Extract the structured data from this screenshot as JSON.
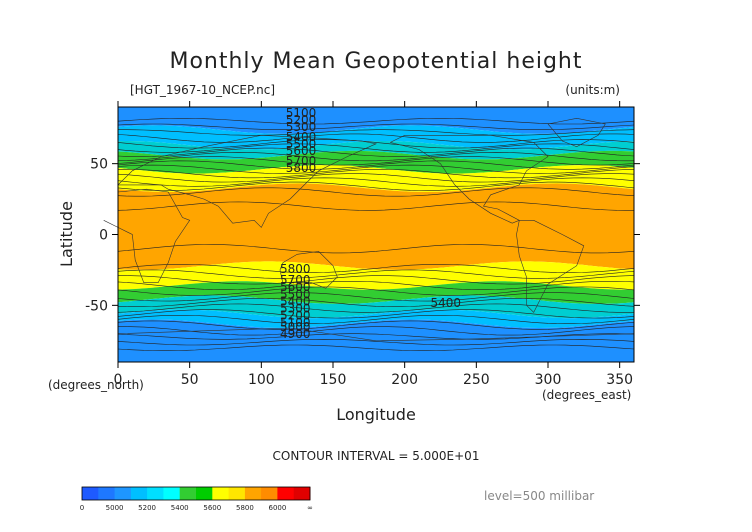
{
  "chart_data": {
    "type": "heatmap",
    "title": "Monthly Mean Geopotential height",
    "file_label": "[HGT_1967-10_NCEP.nc]",
    "units_label": "(units:m)",
    "xlabel": "Longitude",
    "ylabel": "Latitude",
    "x_units": "(degrees_east)",
    "y_units": "(degrees_north)",
    "xlim": [
      0,
      360
    ],
    "ylim": [
      -90,
      90
    ],
    "x_ticks": [
      "0",
      "50",
      "100",
      "150",
      "200",
      "250",
      "300",
      "350"
    ],
    "y_ticks": [
      "50",
      "0",
      "-50"
    ],
    "contour_interval": "CONTOUR INTERVAL = 5.000E+01",
    "level": "level=500 millibar",
    "contour_labels_north": [
      "5100",
      "5200",
      "5300",
      "5400",
      "5500",
      "5600",
      "5700",
      "5800"
    ],
    "contour_labels_south": [
      "5800",
      "5700",
      "5600",
      "5500",
      "5400",
      "5300",
      "5200",
      "5100",
      "5000",
      "4900"
    ],
    "contour_label_mid": "5400",
    "colorbar_ticks": [
      "0",
      "5000",
      "5200",
      "5400",
      "5600",
      "5800",
      "6000",
      "∞"
    ],
    "bands": [
      {
        "from": 90,
        "to": 74,
        "color": "#1e90ff"
      },
      {
        "from": 74,
        "to": 63,
        "color": "#00bfff"
      },
      {
        "from": 63,
        "to": 56,
        "color": "#00ced1"
      },
      {
        "from": 56,
        "to": 46,
        "color": "#32cd32"
      },
      {
        "from": 46,
        "to": 33,
        "color": "#ffff00"
      },
      {
        "from": 33,
        "to": -22,
        "color": "#ffa500"
      },
      {
        "from": -22,
        "to": -36,
        "color": "#ffff00"
      },
      {
        "from": -36,
        "to": -46,
        "color": "#32cd32"
      },
      {
        "from": -46,
        "to": -56,
        "color": "#00ced1"
      },
      {
        "from": -56,
        "to": -63,
        "color": "#00bfff"
      },
      {
        "from": -63,
        "to": -90,
        "color": "#1e90ff"
      }
    ],
    "colorbar_colors": [
      "#1e5aff",
      "#1e78ff",
      "#1e96ff",
      "#00bfff",
      "#00dfff",
      "#00ffff",
      "#32cd32",
      "#00cd00",
      "#ffff00",
      "#ffe600",
      "#ffa500",
      "#ff8c00",
      "#ff0000",
      "#e00000"
    ]
  }
}
